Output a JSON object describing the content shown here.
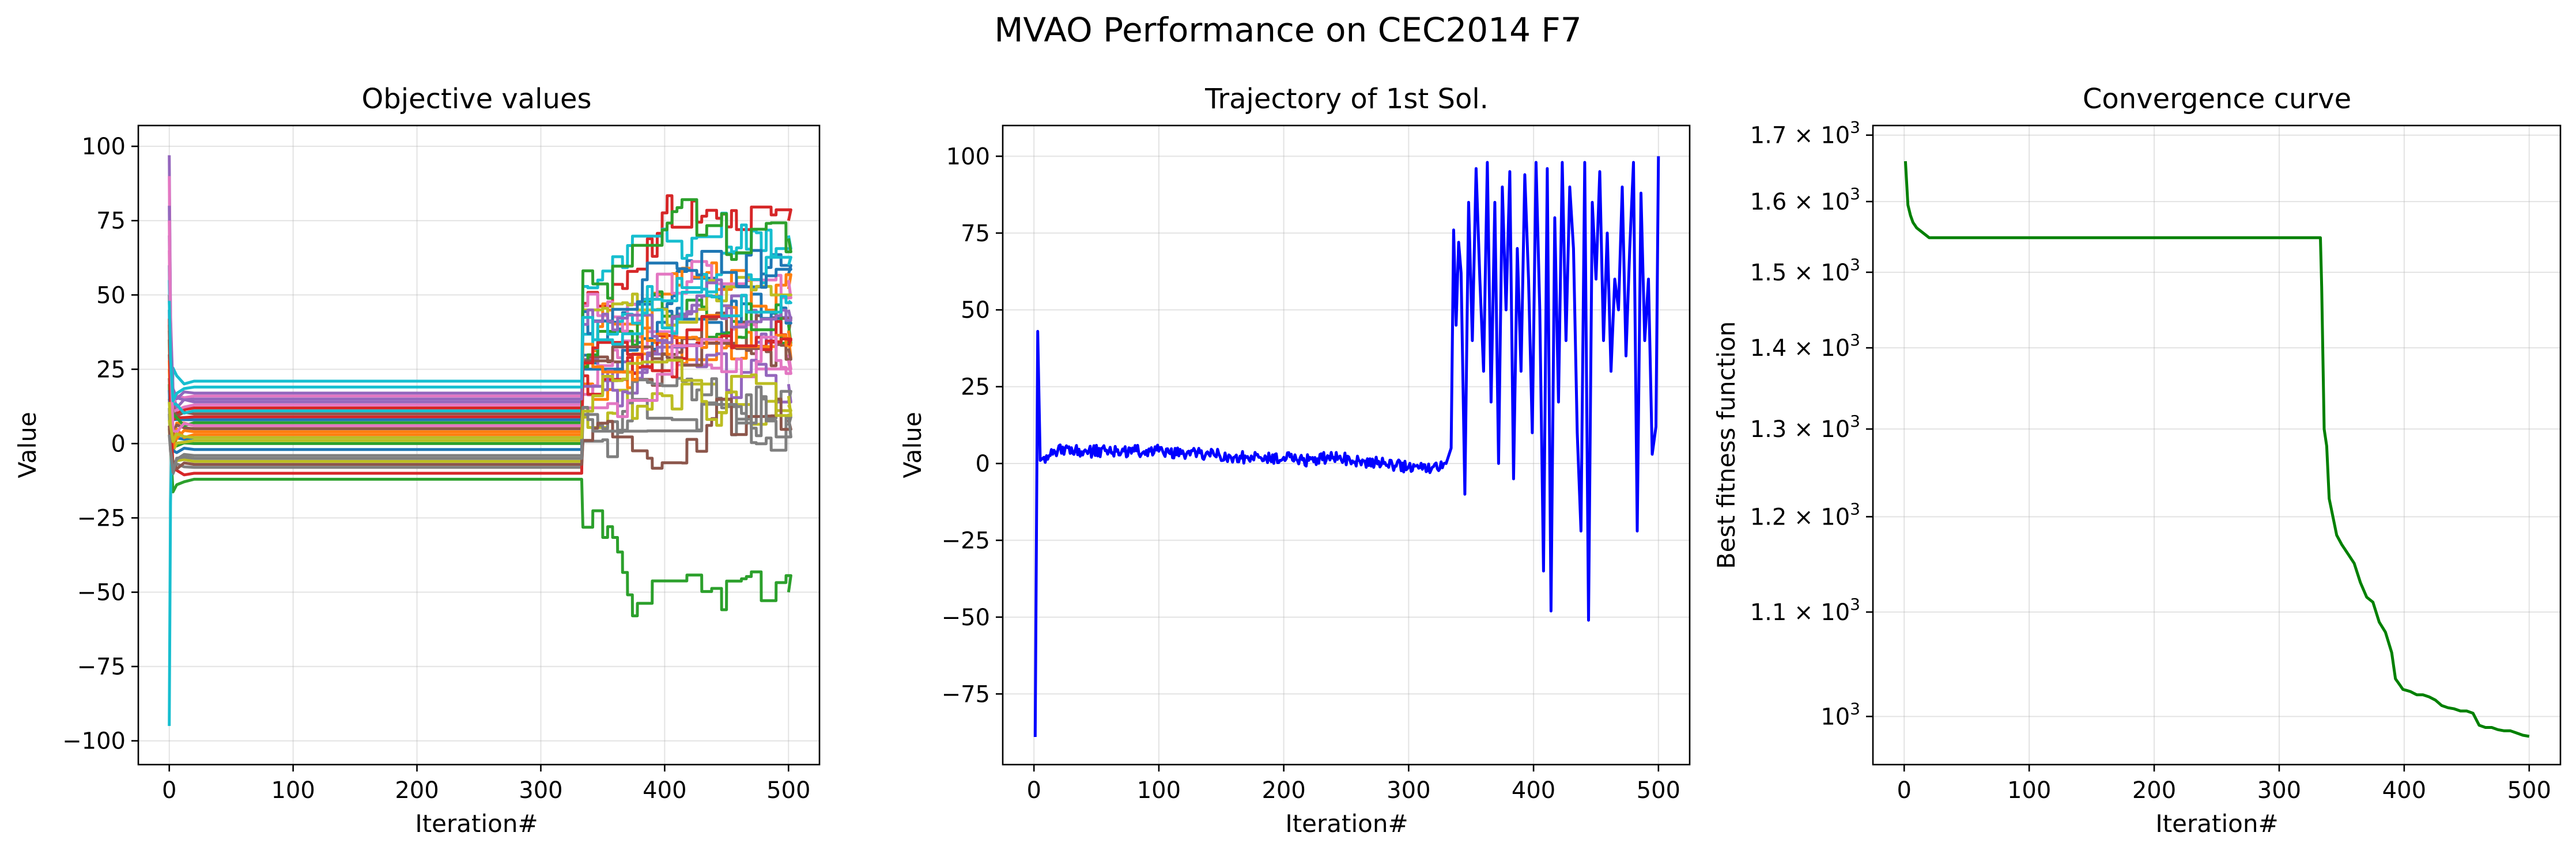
{
  "figure": {
    "title": "MVAO Performance on CEC2014 F7"
  },
  "chart_data": [
    {
      "type": "line",
      "title": "Objective values",
      "xlabel": "Iteration#",
      "ylabel": "Value",
      "xlim": [
        -25,
        525
      ],
      "ylim": [
        -108,
        107
      ],
      "xticks": [
        0,
        100,
        200,
        300,
        400,
        500
      ],
      "yticks": [
        -100,
        -75,
        -50,
        -25,
        0,
        25,
        50,
        75,
        100
      ],
      "ytick_labels": [
        "−100",
        "−75",
        "−50",
        "−25",
        "0",
        "25",
        "50",
        "75",
        "100"
      ],
      "grid": true,
      "series_note": "30 unlabeled series (one per dimension)",
      "series": [
        {
          "color": "#1f77b4",
          "start": 60,
          "plateau": 8,
          "end": 57
        },
        {
          "color": "#ff7f0e",
          "start": 40,
          "plateau": 6,
          "end": 36
        },
        {
          "color": "#2ca02c",
          "start": 20,
          "plateau": -12,
          "end": -50
        },
        {
          "color": "#d62728",
          "start": 50,
          "plateau": 12,
          "end": 75
        },
        {
          "color": "#9467bd",
          "start": 97,
          "plateau": 14,
          "end": 41
        },
        {
          "color": "#8c564b",
          "start": 30,
          "plateau": 10,
          "end": 37
        },
        {
          "color": "#e377c2",
          "start": 90,
          "plateau": 16,
          "end": 30
        },
        {
          "color": "#7f7f7f",
          "start": 10,
          "plateau": -8,
          "end": 6
        },
        {
          "color": "#bcbd22",
          "start": 5,
          "plateau": -6,
          "end": 13
        },
        {
          "color": "#17becf",
          "start": -95,
          "plateau": 21,
          "end": 70
        },
        {
          "color": "#1f77b4",
          "start": 45,
          "plateau": 2,
          "end": 42
        },
        {
          "color": "#ff7f0e",
          "start": 25,
          "plateau": 4,
          "end": 52
        },
        {
          "color": "#2ca02c",
          "start": 35,
          "plateau": 0,
          "end": 40
        },
        {
          "color": "#d62728",
          "start": 15,
          "plateau": 9,
          "end": 35
        },
        {
          "color": "#9467bd",
          "start": 70,
          "plateau": 17,
          "end": 20
        },
        {
          "color": "#8c564b",
          "start": 22,
          "plateau": 5,
          "end": 32
        },
        {
          "color": "#e377c2",
          "start": 65,
          "plateau": 13,
          "end": 55
        },
        {
          "color": "#7f7f7f",
          "start": 12,
          "plateau": -4,
          "end": 14
        },
        {
          "color": "#bcbd22",
          "start": 8,
          "plateau": 1,
          "end": 50
        },
        {
          "color": "#17becf",
          "start": 55,
          "plateau": 11,
          "end": 60
        },
        {
          "color": "#1f77b4",
          "start": 18,
          "plateau": -2,
          "end": 58
        },
        {
          "color": "#ff7f0e",
          "start": 28,
          "plateau": 3,
          "end": 38
        },
        {
          "color": "#2ca02c",
          "start": 38,
          "plateau": 7,
          "end": 69
        },
        {
          "color": "#d62728",
          "start": 42,
          "plateau": -10,
          "end": 33
        },
        {
          "color": "#9467bd",
          "start": 80,
          "plateau": 15,
          "end": 45
        },
        {
          "color": "#8c564b",
          "start": 6,
          "plateau": -7,
          "end": 8
        },
        {
          "color": "#e377c2",
          "start": 75,
          "plateau": 6,
          "end": 28
        },
        {
          "color": "#7f7f7f",
          "start": 3,
          "plateau": -5,
          "end": 10
        },
        {
          "color": "#bcbd22",
          "start": 14,
          "plateau": 2,
          "end": 16
        },
        {
          "color": "#17becf",
          "start": 48,
          "plateau": 19,
          "end": 48
        }
      ]
    },
    {
      "type": "line",
      "title": "Trajectory of 1st Sol.",
      "xlabel": "Iteration#",
      "ylabel": "Value",
      "xlim": [
        -25,
        525
      ],
      "ylim": [
        -98,
        110
      ],
      "xticks": [
        0,
        100,
        200,
        300,
        400,
        500
      ],
      "yticks": [
        -75,
        -50,
        -25,
        0,
        25,
        50,
        75,
        100
      ],
      "ytick_labels": [
        "−75",
        "−50",
        "−25",
        "0",
        "25",
        "50",
        "75",
        "100"
      ],
      "grid": true,
      "series": [
        {
          "color": "#0000ff",
          "x": [
            1,
            3,
            5,
            8,
            15,
            25,
            40,
            60,
            80,
            100,
            120,
            140,
            160,
            180,
            200,
            220,
            240,
            260,
            280,
            300,
            320,
            330,
            334,
            336,
            338,
            340,
            342,
            345,
            348,
            351,
            354,
            357,
            360,
            363,
            366,
            369,
            372,
            375,
            378,
            381,
            384,
            387,
            390,
            393,
            396,
            399,
            402,
            405,
            408,
            411,
            414,
            417,
            420,
            423,
            426,
            429,
            432,
            435,
            438,
            441,
            444,
            447,
            450,
            453,
            456,
            459,
            462,
            465,
            468,
            471,
            474,
            477,
            480,
            483,
            486,
            489,
            492,
            495,
            498,
            500
          ],
          "values": [
            -89,
            43,
            1,
            2,
            3,
            5,
            4,
            4,
            4,
            4,
            3,
            3,
            2,
            2,
            2,
            1,
            2,
            1,
            0,
            -1,
            -1,
            0,
            5,
            76,
            45,
            72,
            62,
            -10,
            85,
            40,
            96,
            60,
            30,
            98,
            20,
            85,
            0,
            90,
            50,
            95,
            -5,
            70,
            30,
            94,
            60,
            10,
            98,
            50,
            -35,
            96,
            -48,
            80,
            20,
            98,
            40,
            90,
            70,
            10,
            -22,
            98,
            -51,
            85,
            60,
            95,
            40,
            75,
            30,
            60,
            50,
            90,
            35,
            70,
            98,
            -22,
            88,
            40,
            60,
            3,
            12,
            100
          ]
        }
      ]
    },
    {
      "type": "line",
      "title": "Convergence curve",
      "xlabel": "Iteration#",
      "ylabel": "Best fitness function",
      "yscale": "log",
      "xlim": [
        -25,
        525
      ],
      "ylim": [
        957,
        1715
      ],
      "xticks": [
        0,
        100,
        200,
        300,
        400,
        500
      ],
      "yticks": [
        1000,
        1100,
        1200,
        1300,
        1400,
        1500,
        1600,
        1700
      ],
      "ytick_mantissas": [
        "10",
        "1.1 × 10",
        "1.2 × 10",
        "1.3 × 10",
        "1.4 × 10",
        "1.5 × 10",
        "1.6 × 10",
        "1.7 × 10"
      ],
      "ytick_exponent": "3",
      "grid": true,
      "series": [
        {
          "color": "#008000",
          "x": [
            1,
            3,
            5,
            7,
            10,
            15,
            20,
            40,
            100,
            200,
            300,
            333,
            334,
            336,
            338,
            340,
            343,
            346,
            350,
            355,
            360,
            365,
            370,
            375,
            380,
            385,
            390,
            393,
            396,
            399,
            402,
            405,
            410,
            415,
            420,
            425,
            430,
            435,
            440,
            445,
            450,
            455,
            460,
            465,
            470,
            475,
            480,
            485,
            490,
            495,
            500
          ],
          "values": [
            1660,
            1595,
            1580,
            1570,
            1562,
            1555,
            1548,
            1548,
            1548,
            1548,
            1548,
            1548,
            1480,
            1300,
            1280,
            1220,
            1200,
            1180,
            1170,
            1160,
            1150,
            1130,
            1115,
            1110,
            1090,
            1080,
            1060,
            1035,
            1030,
            1025,
            1024,
            1023,
            1020,
            1020,
            1018,
            1015,
            1010,
            1008,
            1007,
            1005,
            1005,
            1003,
            992,
            990,
            990,
            988,
            987,
            987,
            985,
            983,
            982
          ]
        }
      ]
    }
  ]
}
